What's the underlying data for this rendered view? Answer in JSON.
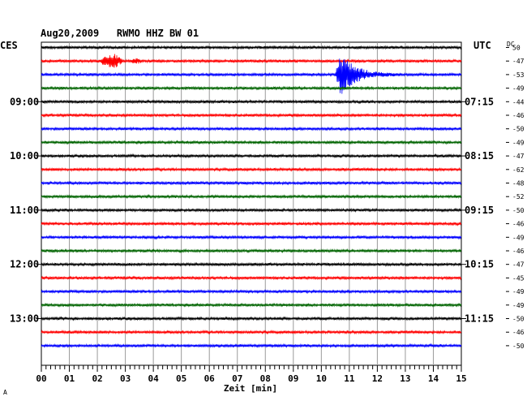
{
  "chart_data": {
    "type": "line",
    "title": "Aug20,2009   RWMO HHZ BW 01",
    "left_header": "CES",
    "right_header": "UTC",
    "dc_header": "DC",
    "xlabel": "Zeit [min]",
    "x_ticks": [
      "00",
      "01",
      "02",
      "03",
      "04",
      "05",
      "06",
      "07",
      "08",
      "09",
      "10",
      "11",
      "12",
      "13",
      "14",
      "15"
    ],
    "xlim": [
      0,
      15
    ],
    "trace_colors": [
      "#000000",
      "#ff0000",
      "#0000ff",
      "#006400"
    ],
    "left_time_labels": [
      {
        "trace": 4,
        "label": "09:00"
      },
      {
        "trace": 8,
        "label": "10:00"
      },
      {
        "trace": 12,
        "label": "11:00"
      },
      {
        "trace": 16,
        "label": "12:00"
      },
      {
        "trace": 20,
        "label": "13:00"
      }
    ],
    "right_time_labels": [
      {
        "trace": 4,
        "label": "07:15"
      },
      {
        "trace": 8,
        "label": "08:15"
      },
      {
        "trace": 12,
        "label": "09:15"
      },
      {
        "trace": 16,
        "label": "10:15"
      },
      {
        "trace": 20,
        "label": "11:15"
      }
    ],
    "dc_values": [
      "50",
      "-47",
      "-53",
      "-49",
      "-44",
      "-46",
      "-50",
      "-49",
      "-47",
      "-62",
      "-48",
      "-52",
      "-50",
      "-46",
      "-49",
      "-46",
      "-47",
      "-45",
      "-49",
      "-49",
      "-50",
      "-46",
      "-50"
    ],
    "events": [
      {
        "trace": 1,
        "start_min": 2.1,
        "end_min": 2.9,
        "amplitude": 9,
        "label": ""
      },
      {
        "trace": 1,
        "start_min": 3.2,
        "end_min": 3.6,
        "amplitude": 2,
        "label": ""
      },
      {
        "trace": 2,
        "start_min": 10.5,
        "end_min": 12.8,
        "amplitude": 26,
        "label": ""
      }
    ],
    "footnote": "Α"
  }
}
